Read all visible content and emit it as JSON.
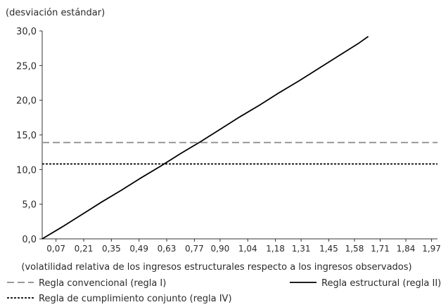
{
  "chart_data": {
    "type": "line",
    "title": "",
    "ylabel": "(desviación estándar)",
    "xlabel": "(volatilidad relativa de los ingresos estructurales respecto a los ingresos observados)",
    "x_ticks": [
      "0,07",
      "0,21",
      "0,35",
      "0,49",
      "0,63",
      "0,77",
      "0,90",
      "1,04",
      "1,18",
      "1,31",
      "1,45",
      "1,58",
      "1,71",
      "1,84",
      "1,97"
    ],
    "y_ticks": [
      "0,0",
      "5,0",
      "10,0",
      "15,0",
      "20,0",
      "25,0",
      "30,0"
    ],
    "ylim": [
      0,
      30
    ],
    "xlim": [
      0,
      2.0
    ],
    "grid": false,
    "legend_position": "bottom",
    "series": [
      {
        "name": "Regla convencional (regla I)",
        "style": "dashed",
        "color": "#999999",
        "x": [
          0.0,
          2.0
        ],
        "y": [
          13.9,
          13.9
        ]
      },
      {
        "name": "Regla estructural (regla II)",
        "style": "solid",
        "color": "#000000",
        "x": [
          0.0,
          0.1,
          0.2,
          0.3,
          0.4,
          0.5,
          0.6,
          0.7,
          0.8,
          0.9,
          1.0,
          1.1,
          1.2,
          1.3,
          1.4,
          1.5,
          1.6,
          1.65
        ],
        "y": [
          0.0,
          1.7,
          3.5,
          5.3,
          7.0,
          8.8,
          10.5,
          12.3,
          14.0,
          15.8,
          17.6,
          19.3,
          21.1,
          22.8,
          24.6,
          26.4,
          28.2,
          29.2
        ]
      },
      {
        "name": "Regla de cumplimiento conjunto (regla IV)",
        "style": "dotted",
        "color": "#000000",
        "x": [
          0.0,
          2.0
        ],
        "y": [
          10.8,
          10.8
        ]
      }
    ]
  }
}
